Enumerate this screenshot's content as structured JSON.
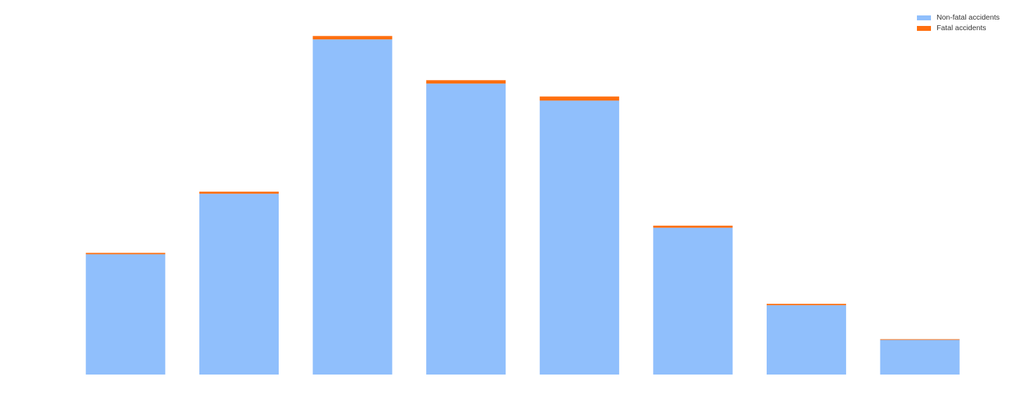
{
  "chart_data": {
    "type": "bar",
    "stacked": true,
    "categories": [
      "",
      "",
      "",
      "",
      "",
      "",
      "",
      ""
    ],
    "series": [
      {
        "name": "Non-fatal accidents",
        "color": "#90bffc",
        "values": [
          177,
          266,
          493,
          428,
          403,
          216,
          102,
          51
        ]
      },
      {
        "name": "Fatal accidents",
        "color": "#ff6f0f",
        "values": [
          2,
          3,
          5,
          5,
          6,
          3,
          2,
          1
        ]
      }
    ],
    "title": "",
    "xlabel": "",
    "ylabel": "",
    "ylim": [
      0,
      520
    ],
    "grid": false,
    "legend_position": "top-right"
  }
}
